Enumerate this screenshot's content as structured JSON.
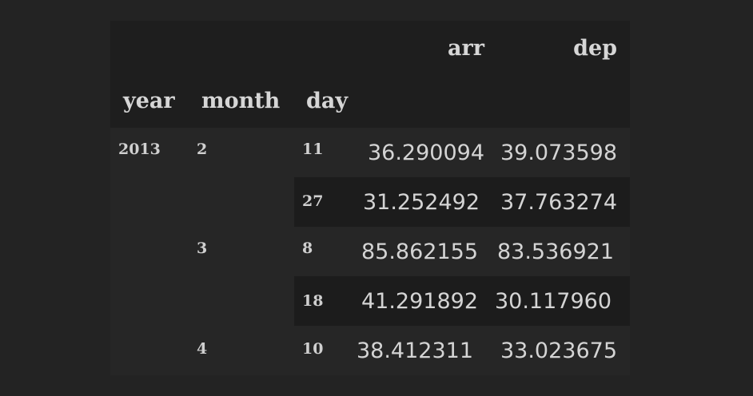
{
  "table": {
    "columns": [
      "arr",
      "dep"
    ],
    "index_names": [
      "year",
      "month",
      "day"
    ],
    "rows": [
      {
        "year": "2013",
        "month": "2",
        "day": "11",
        "arr": "36.290094",
        "dep": "39.073598"
      },
      {
        "year": "",
        "month": "",
        "day": "27",
        "arr": "31.252492",
        "dep": "37.763274"
      },
      {
        "year": "",
        "month": "3",
        "day": "8",
        "arr": "85.862155",
        "dep": "83.536921"
      },
      {
        "year": "",
        "month": "",
        "day": "18",
        "arr": "41.291892",
        "dep": "30.117960"
      },
      {
        "year": "",
        "month": "4",
        "day": "10",
        "arr": "38.412311",
        "dep": "33.023675"
      }
    ]
  },
  "colors": {
    "background": "#232323",
    "table_background": "#1e1e1e",
    "row_light": "#262626",
    "row_dark": "#1c1c1c",
    "text": "#d4d4d4"
  }
}
